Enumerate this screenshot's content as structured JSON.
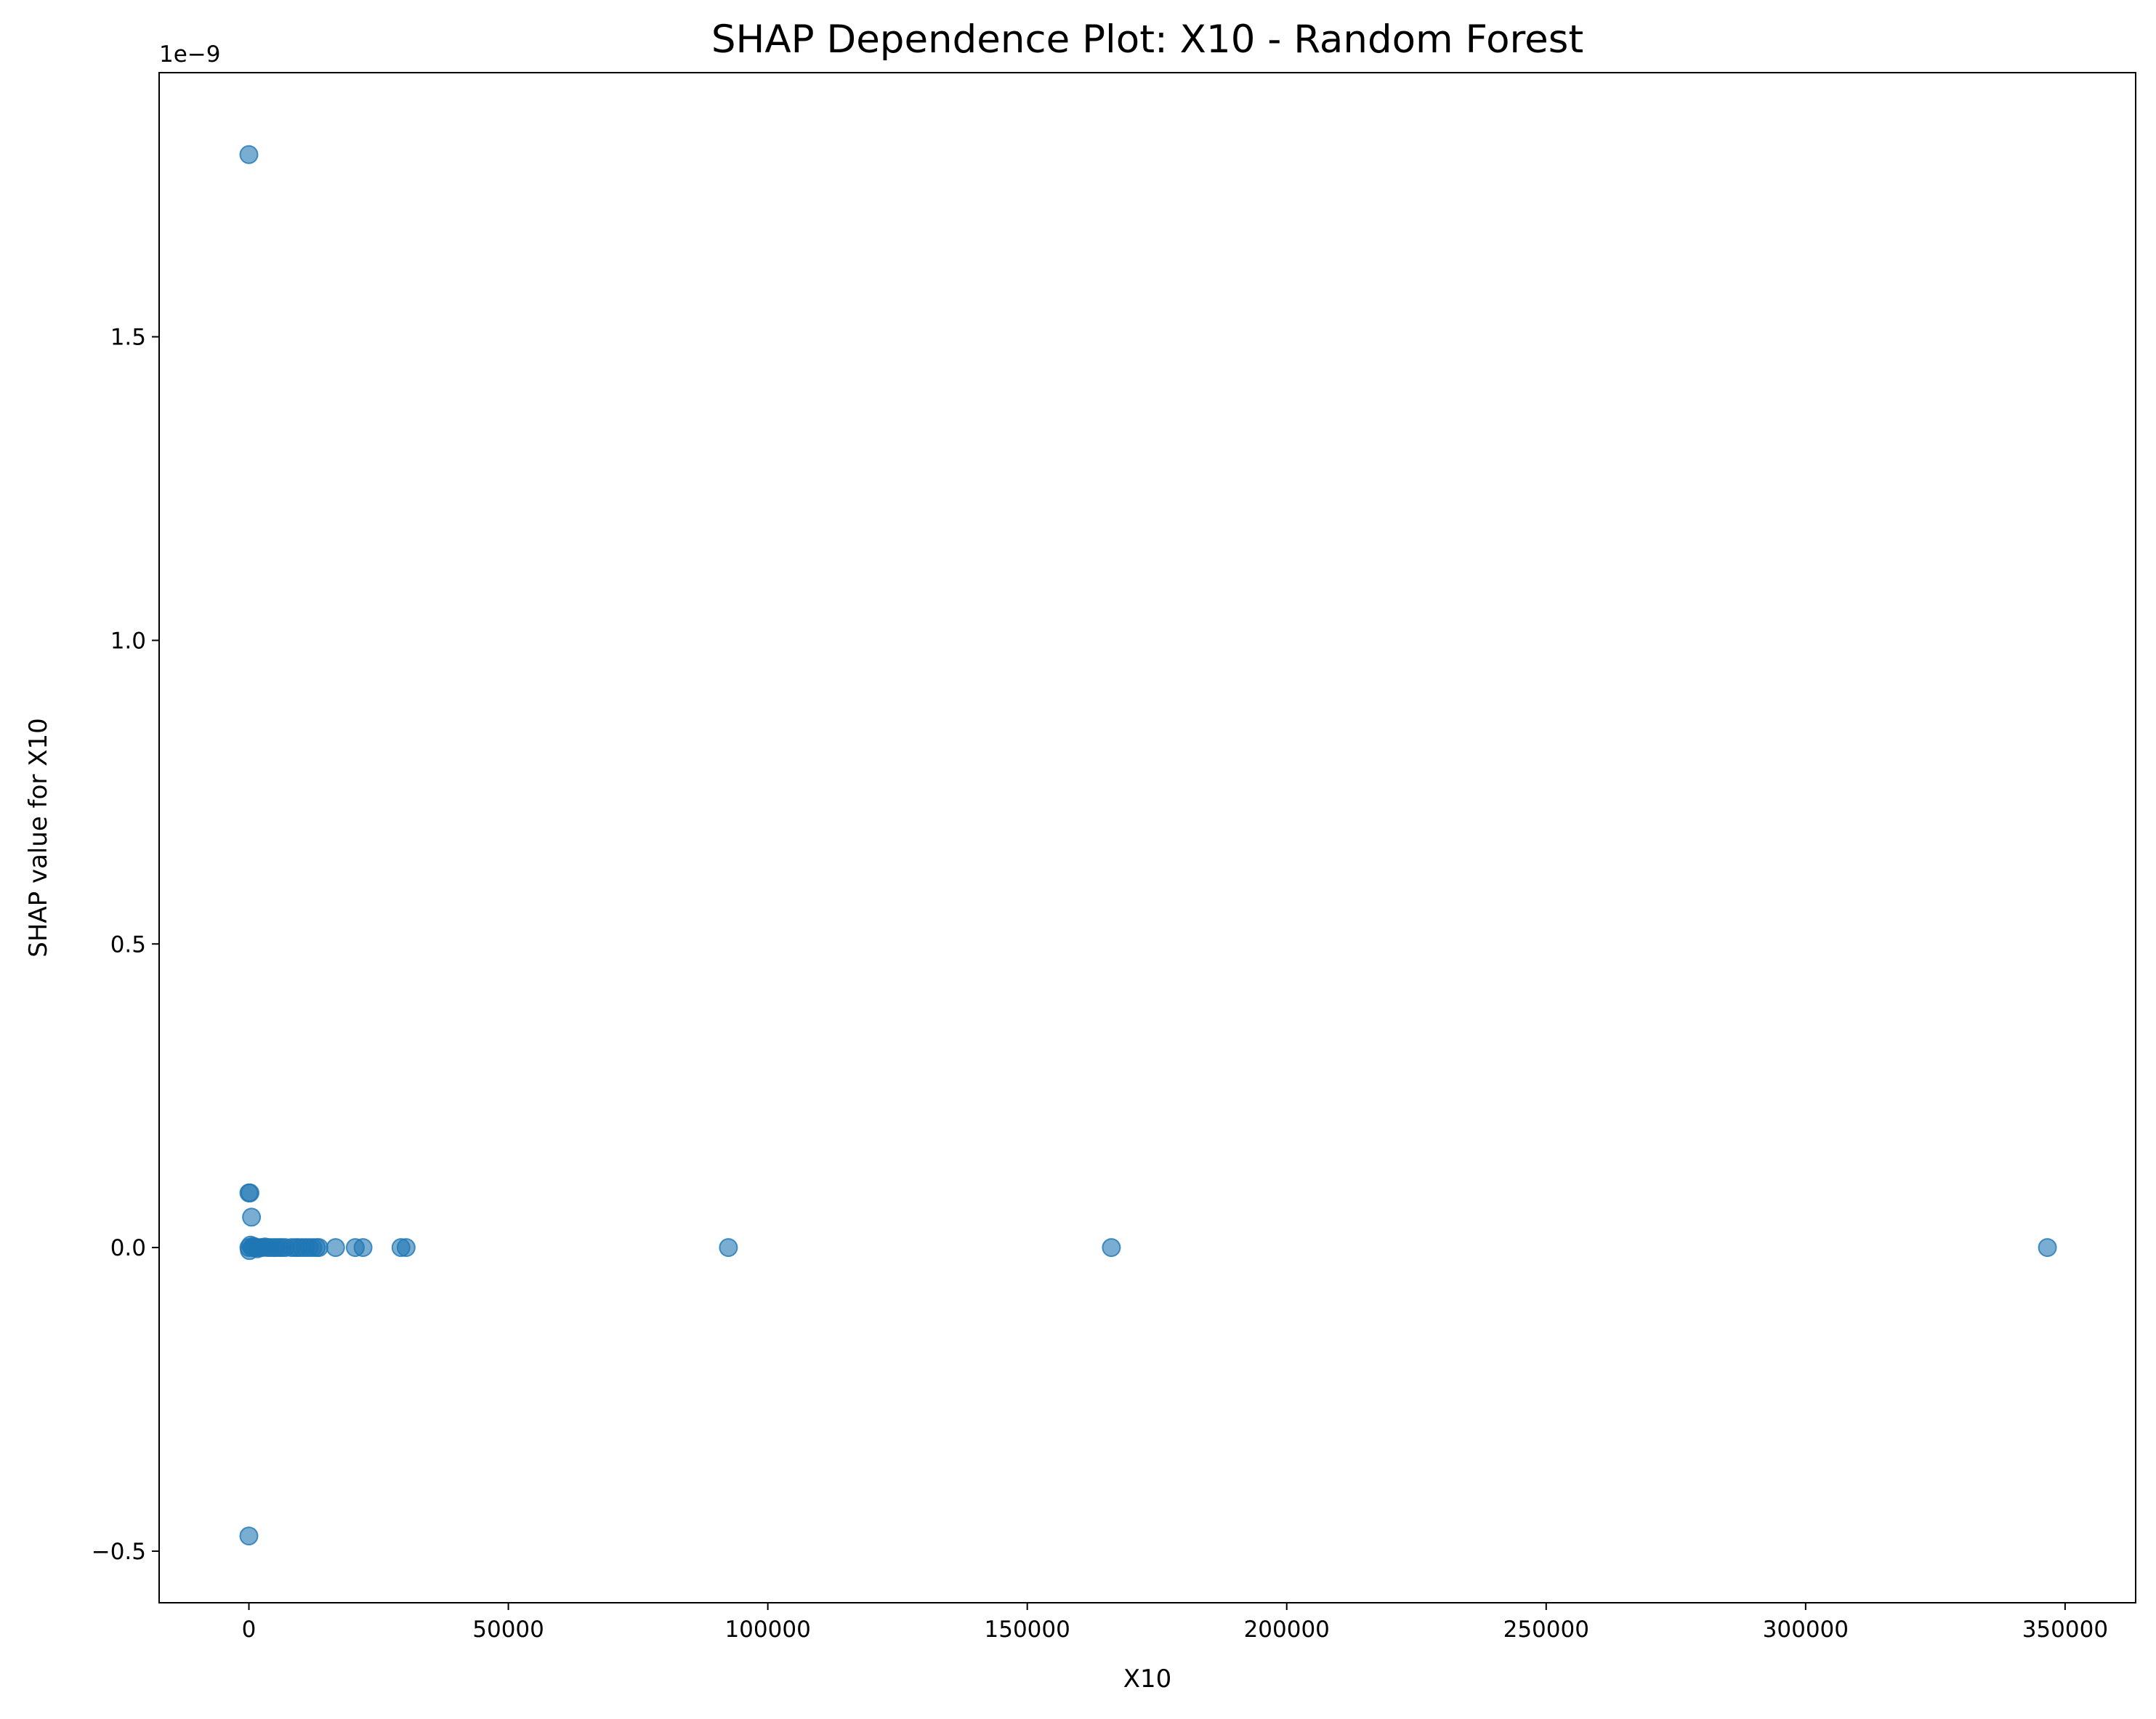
{
  "chart_data": {
    "type": "scatter",
    "title": "SHAP Dependence Plot: X10 - Random Forest",
    "xlabel": "X10",
    "ylabel": "SHAP value for X10",
    "y_scale_label": "1e−9",
    "xlim": [
      -17300,
      363600
    ],
    "ylim": [
      -5.85e-10,
      1.935e-09
    ],
    "xticks": [
      0,
      50000,
      100000,
      150000,
      200000,
      250000,
      300000,
      350000
    ],
    "xtick_labels": [
      "0",
      "50000",
      "100000",
      "150000",
      "200000",
      "250000",
      "300000",
      "350000"
    ],
    "yticks": [
      -5e-10,
      0.0,
      5e-10,
      1e-09,
      1.5e-09
    ],
    "ytick_labels": [
      "−0.5",
      "0.0",
      "0.5",
      "1.0",
      "1.5"
    ],
    "grid": false,
    "marker_color": "#1f77b4",
    "marker_alpha": 0.6,
    "points": [
      {
        "x": 0,
        "y": 1.8e-09
      },
      {
        "x": 0,
        "y": -4.75e-10
      },
      {
        "x": 0,
        "y": 9e-11
      },
      {
        "x": 200,
        "y": 9e-11
      },
      {
        "x": 500,
        "y": 5e-11
      },
      {
        "x": 0,
        "y": 0.0
      },
      {
        "x": 100,
        "y": -5e-12
      },
      {
        "x": 300,
        "y": 4e-12
      },
      {
        "x": 600,
        "y": 0.0
      },
      {
        "x": 900,
        "y": 2e-12
      },
      {
        "x": 1200,
        "y": 0.0
      },
      {
        "x": 1600,
        "y": -2e-12
      },
      {
        "x": 2100,
        "y": 0.0
      },
      {
        "x": 2600,
        "y": 0.0
      },
      {
        "x": 3100,
        "y": 1e-12
      },
      {
        "x": 3600,
        "y": 0.0
      },
      {
        "x": 4100,
        "y": 0.0
      },
      {
        "x": 4700,
        "y": 0.0
      },
      {
        "x": 5200,
        "y": 0.0
      },
      {
        "x": 5800,
        "y": 0.0
      },
      {
        "x": 6400,
        "y": 0.0
      },
      {
        "x": 7000,
        "y": 0.0
      },
      {
        "x": 8200,
        "y": 0.0
      },
      {
        "x": 8900,
        "y": 0.0
      },
      {
        "x": 9500,
        "y": 0.0
      },
      {
        "x": 10200,
        "y": 0.0
      },
      {
        "x": 10900,
        "y": 0.0
      },
      {
        "x": 11600,
        "y": 0.0
      },
      {
        "x": 12300,
        "y": 0.0
      },
      {
        "x": 13000,
        "y": 0.0
      },
      {
        "x": 13500,
        "y": 0.0
      },
      {
        "x": 16700,
        "y": 0.0
      },
      {
        "x": 20500,
        "y": 0.0
      },
      {
        "x": 22000,
        "y": 0.0
      },
      {
        "x": 29300,
        "y": 0.0
      },
      {
        "x": 30300,
        "y": 0.0
      },
      {
        "x": 92400,
        "y": 0.0
      },
      {
        "x": 166200,
        "y": 0.0
      },
      {
        "x": 346600,
        "y": 0.0
      }
    ]
  }
}
